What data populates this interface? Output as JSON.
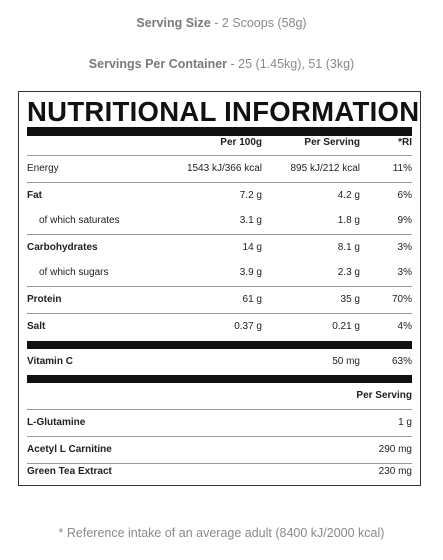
{
  "serving_size": {
    "label": "Serving Size",
    "value": " - 2 Scoops (58g)"
  },
  "servings_per_container": {
    "label": "Servings Per Container",
    "value": " - 25 (1.45kg), 51 (3kg)"
  },
  "panel": {
    "title": "NUTRITIONAL INFORMATION",
    "headers": {
      "per100": "Per 100g",
      "perServing": "Per Serving",
      "ri": "*RI"
    },
    "rows": [
      {
        "name": "Energy",
        "per100": "1543 kJ/366 kcal",
        "perServing": "895 kJ/212 kcal",
        "ri": "11%"
      },
      {
        "name": "Fat",
        "per100": "7.2 g",
        "perServing": "4.2 g",
        "ri": "6%"
      },
      {
        "name": "of which saturates",
        "per100": "3.1 g",
        "perServing": "1.8 g",
        "ri": "9%"
      },
      {
        "name": "Carbohydrates",
        "per100": "14 g",
        "perServing": "8.1 g",
        "ri": "3%"
      },
      {
        "name": "of which sugars",
        "per100": "3.9 g",
        "perServing": "2.3 g",
        "ri": "3%"
      },
      {
        "name": "Protein",
        "per100": "61 g",
        "perServing": "35 g",
        "ri": "70%"
      },
      {
        "name": "Salt",
        "per100": "0.37 g",
        "perServing": "0.21 g",
        "ri": "4%"
      }
    ],
    "vitamin": {
      "name": "Vitamin C",
      "perServing": "50 mg",
      "ri": "63%"
    },
    "extra_header": "Per Serving",
    "extras": [
      {
        "name": "L-Glutamine",
        "perServing": "1 g"
      },
      {
        "name": "Acetyl L Carnitine",
        "perServing": "290 mg"
      },
      {
        "name": "Green Tea Extract",
        "perServing": "230 mg"
      }
    ]
  },
  "footnote": "* Reference intake of an average adult (8400 kJ/2000 kcal)"
}
